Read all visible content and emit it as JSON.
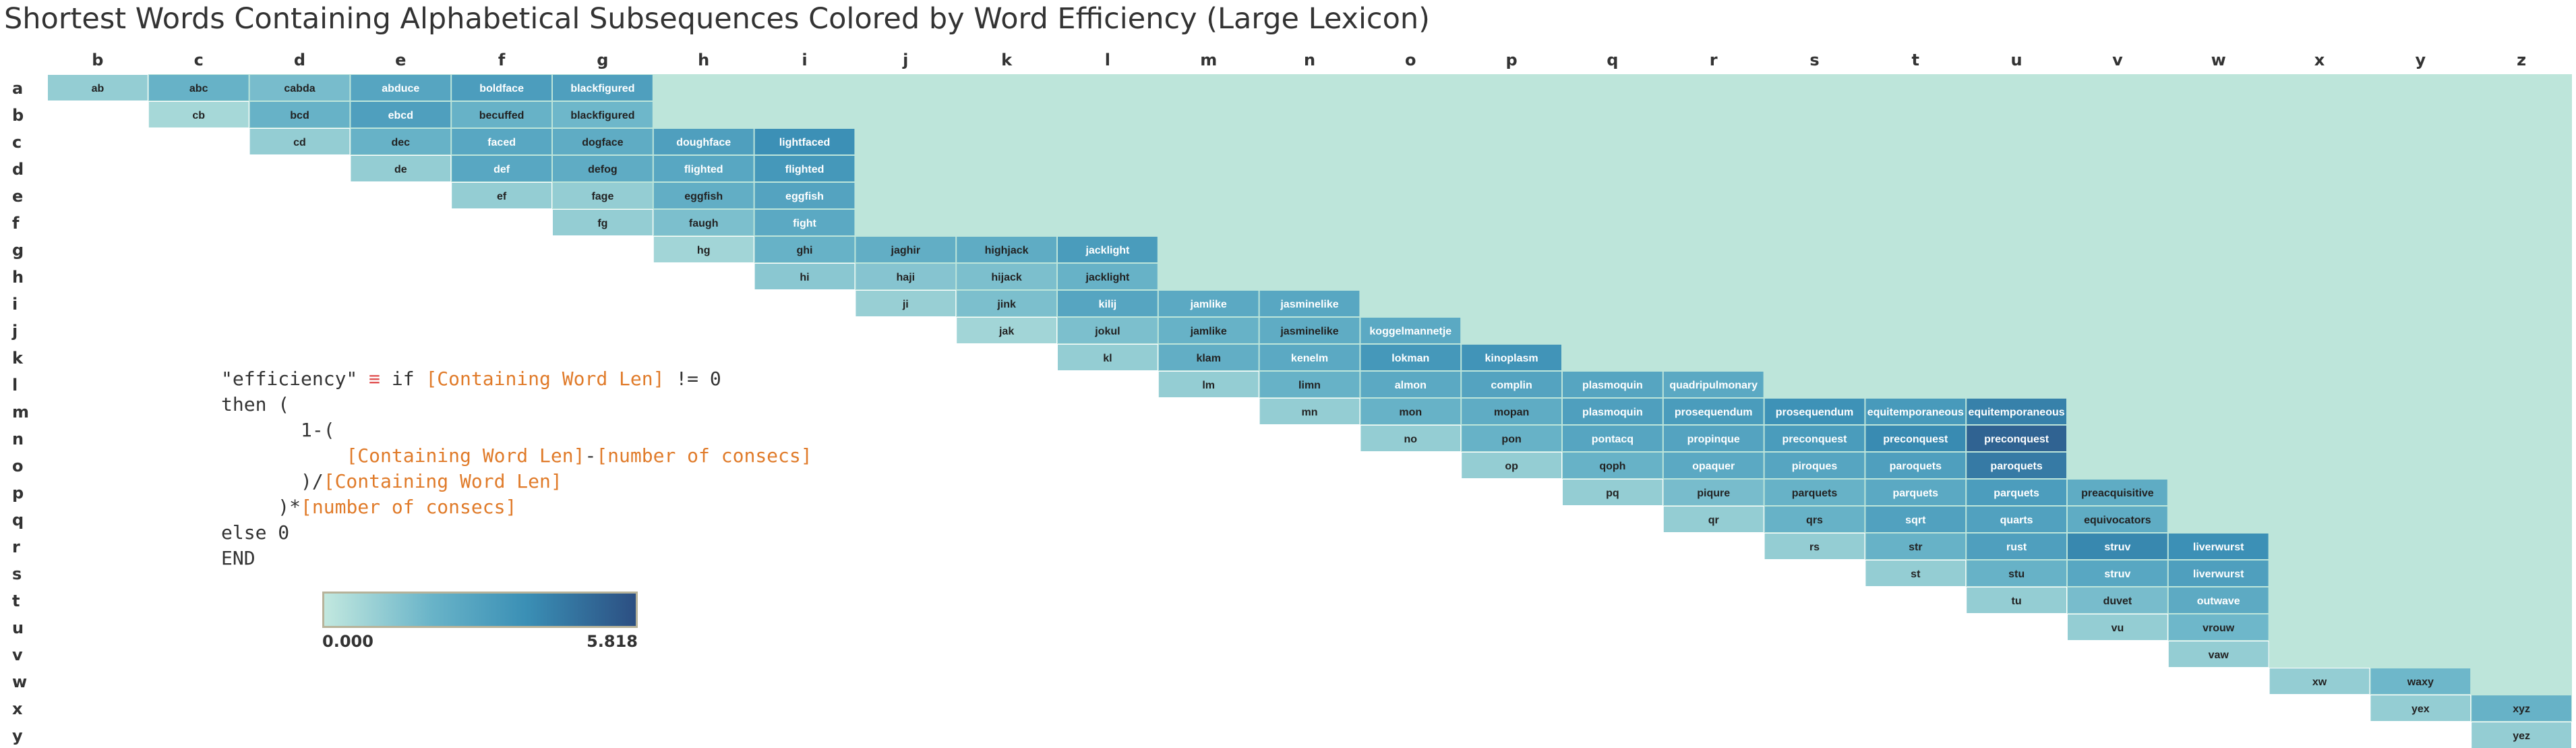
{
  "title": "Shortest Words Containing Alphabetical Subsequences Colored by Word Efficiency (Large Lexicon)",
  "formula_lines": [
    [
      {
        "t": "\"efficiency\" "
      },
      {
        "t": "≡ ",
        "c": "#e05050"
      },
      {
        "t": "if "
      },
      {
        "t": "[Containing Word Len]",
        "c": "#e07b2a"
      },
      {
        "t": " != 0"
      }
    ],
    [
      {
        "t": "then ("
      }
    ],
    [
      {
        "t": "       1-("
      }
    ],
    [
      {
        "t": "           "
      },
      {
        "t": "[Containing Word Len]",
        "c": "#e07b2a"
      },
      {
        "t": "-"
      },
      {
        "t": "[number of consecs]",
        "c": "#e07b2a"
      }
    ],
    [
      {
        "t": "       )/"
      },
      {
        "t": "[Containing Word Len]",
        "c": "#e07b2a"
      }
    ],
    [
      {
        "t": "     )*"
      },
      {
        "t": "[number of consecs]",
        "c": "#e07b2a"
      }
    ],
    [
      {
        "t": "else 0"
      }
    ],
    [
      {
        "t": "END"
      }
    ]
  ],
  "legend": {
    "min_label": "0.000",
    "max_label": "5.818"
  },
  "colors": {
    "background_fill": "#bde5da",
    "scale": [
      "#c2e8df",
      "#68b3c8",
      "#3a8fb5",
      "#2c4f82"
    ]
  },
  "chart_data": {
    "type": "heatmap",
    "x_categories": [
      "b",
      "c",
      "d",
      "e",
      "f",
      "g",
      "h",
      "i",
      "j",
      "k",
      "l",
      "m",
      "n",
      "o",
      "p",
      "q",
      "r",
      "s",
      "t",
      "u",
      "v",
      "w",
      "x",
      "y",
      "z"
    ],
    "y_categories": [
      "a",
      "b",
      "c",
      "d",
      "e",
      "f",
      "g",
      "h",
      "i",
      "j",
      "k",
      "l",
      "m",
      "n",
      "o",
      "p",
      "q",
      "r",
      "s",
      "t",
      "u",
      "v",
      "w",
      "x",
      "y"
    ],
    "color_range": [
      0,
      5.818
    ],
    "cells": [
      {
        "row": "a",
        "col": "b",
        "word": "ab",
        "value": 1.0
      },
      {
        "row": "a",
        "col": "c",
        "word": "abc",
        "value": 2.0
      },
      {
        "row": "a",
        "col": "d",
        "word": "cabda",
        "value": 1.6
      },
      {
        "row": "a",
        "col": "e",
        "word": "abduce",
        "value": 2.7
      },
      {
        "row": "a",
        "col": "f",
        "word": "boldface",
        "value": 3.1
      },
      {
        "row": "a",
        "col": "g",
        "word": "blackfigured",
        "value": 3.0
      },
      {
        "row": "b",
        "col": "c",
        "word": "cb",
        "value": 0.6
      },
      {
        "row": "b",
        "col": "d",
        "word": "bcd",
        "value": 2.0
      },
      {
        "row": "b",
        "col": "e",
        "word": "ebcd",
        "value": 3.0
      },
      {
        "row": "b",
        "col": "f",
        "word": "becuffed",
        "value": 2.0
      },
      {
        "row": "b",
        "col": "g",
        "word": "blackfigured",
        "value": 1.8
      },
      {
        "row": "c",
        "col": "d",
        "word": "cd",
        "value": 1.0
      },
      {
        "row": "c",
        "col": "e",
        "word": "dec",
        "value": 2.0
      },
      {
        "row": "c",
        "col": "f",
        "word": "faced",
        "value": 2.6
      },
      {
        "row": "c",
        "col": "g",
        "word": "dogface",
        "value": 2.3
      },
      {
        "row": "c",
        "col": "h",
        "word": "doughface",
        "value": 3.0
      },
      {
        "row": "c",
        "col": "i",
        "word": "lightfaced",
        "value": 3.8
      },
      {
        "row": "d",
        "col": "e",
        "word": "de",
        "value": 1.0
      },
      {
        "row": "d",
        "col": "f",
        "word": "def",
        "value": 2.6
      },
      {
        "row": "d",
        "col": "g",
        "word": "defog",
        "value": 2.3
      },
      {
        "row": "d",
        "col": "h",
        "word": "flighted",
        "value": 2.6
      },
      {
        "row": "d",
        "col": "i",
        "word": "flighted",
        "value": 3.4
      },
      {
        "row": "e",
        "col": "f",
        "word": "ef",
        "value": 1.0
      },
      {
        "row": "e",
        "col": "g",
        "word": "fage",
        "value": 1.0
      },
      {
        "row": "e",
        "col": "h",
        "word": "eggfish",
        "value": 2.2
      },
      {
        "row": "e",
        "col": "i",
        "word": "eggfish",
        "value": 2.8
      },
      {
        "row": "f",
        "col": "g",
        "word": "fg",
        "value": 1.0
      },
      {
        "row": "f",
        "col": "h",
        "word": "faugh",
        "value": 1.5
      },
      {
        "row": "f",
        "col": "i",
        "word": "fight",
        "value": 2.5
      },
      {
        "row": "g",
        "col": "h",
        "word": "hg",
        "value": 0.7
      },
      {
        "row": "g",
        "col": "i",
        "word": "ghi",
        "value": 2.0
      },
      {
        "row": "g",
        "col": "j",
        "word": "jaghir",
        "value": 2.2
      },
      {
        "row": "g",
        "col": "k",
        "word": "highjack",
        "value": 2.3
      },
      {
        "row": "g",
        "col": "l",
        "word": "jacklight",
        "value": 3.2
      },
      {
        "row": "h",
        "col": "i",
        "word": "hi",
        "value": 1.2
      },
      {
        "row": "h",
        "col": "j",
        "word": "haji",
        "value": 1.3
      },
      {
        "row": "h",
        "col": "k",
        "word": "hijack",
        "value": 1.5
      },
      {
        "row": "h",
        "col": "l",
        "word": "jacklight",
        "value": 2.0
      },
      {
        "row": "i",
        "col": "j",
        "word": "ji",
        "value": 0.9
      },
      {
        "row": "i",
        "col": "k",
        "word": "jink",
        "value": 1.5
      },
      {
        "row": "i",
        "col": "l",
        "word": "kilij",
        "value": 2.7
      },
      {
        "row": "i",
        "col": "m",
        "word": "jamlike",
        "value": 2.5
      },
      {
        "row": "i",
        "col": "n",
        "word": "jasminelike",
        "value": 2.6
      },
      {
        "row": "j",
        "col": "k",
        "word": "jak",
        "value": 0.7
      },
      {
        "row": "j",
        "col": "l",
        "word": "jokul",
        "value": 1.5
      },
      {
        "row": "j",
        "col": "m",
        "word": "jamlike",
        "value": 2.0
      },
      {
        "row": "j",
        "col": "n",
        "word": "jasminelike",
        "value": 2.3
      },
      {
        "row": "j",
        "col": "o",
        "word": "koggelmannetje",
        "value": 2.5
      },
      {
        "row": "k",
        "col": "l",
        "word": "kl",
        "value": 1.0
      },
      {
        "row": "k",
        "col": "m",
        "word": "klam",
        "value": 2.2
      },
      {
        "row": "k",
        "col": "n",
        "word": "kenelm",
        "value": 2.5
      },
      {
        "row": "k",
        "col": "o",
        "word": "lokman",
        "value": 3.4
      },
      {
        "row": "k",
        "col": "p",
        "word": "kinoplasm",
        "value": 3.6
      },
      {
        "row": "l",
        "col": "m",
        "word": "lm",
        "value": 1.0
      },
      {
        "row": "l",
        "col": "n",
        "word": "limn",
        "value": 2.0
      },
      {
        "row": "l",
        "col": "o",
        "word": "almon",
        "value": 2.5
      },
      {
        "row": "l",
        "col": "p",
        "word": "complin",
        "value": 2.8
      },
      {
        "row": "l",
        "col": "q",
        "word": "plasmoquin",
        "value": 2.7
      },
      {
        "row": "l",
        "col": "r",
        "word": "quadripulmonary",
        "value": 2.5
      },
      {
        "row": "m",
        "col": "n",
        "word": "mn",
        "value": 1.0
      },
      {
        "row": "m",
        "col": "o",
        "word": "mon",
        "value": 2.0
      },
      {
        "row": "m",
        "col": "p",
        "word": "mopan",
        "value": 2.3
      },
      {
        "row": "m",
        "col": "q",
        "word": "plasmoquin",
        "value": 3.0
      },
      {
        "row": "m",
        "col": "r",
        "word": "prosequendum",
        "value": 3.2
      },
      {
        "row": "m",
        "col": "s",
        "word": "prosequendum",
        "value": 3.7
      },
      {
        "row": "m",
        "col": "t",
        "word": "equitemporaneous",
        "value": 3.3
      },
      {
        "row": "m",
        "col": "u",
        "word": "equitemporaneous",
        "value": 4.3
      },
      {
        "row": "n",
        "col": "o",
        "word": "no",
        "value": 1.0
      },
      {
        "row": "n",
        "col": "p",
        "word": "pon",
        "value": 2.0
      },
      {
        "row": "n",
        "col": "q",
        "word": "pontacq",
        "value": 2.7
      },
      {
        "row": "n",
        "col": "r",
        "word": "propinque",
        "value": 2.8
      },
      {
        "row": "n",
        "col": "s",
        "word": "preconquest",
        "value": 3.2
      },
      {
        "row": "n",
        "col": "t",
        "word": "preconquest",
        "value": 4.0
      },
      {
        "row": "n",
        "col": "u",
        "word": "preconquest",
        "value": 5.2
      },
      {
        "row": "o",
        "col": "p",
        "word": "op",
        "value": 1.0
      },
      {
        "row": "o",
        "col": "q",
        "word": "qoph",
        "value": 2.0
      },
      {
        "row": "o",
        "col": "r",
        "word": "opaquer",
        "value": 2.5
      },
      {
        "row": "o",
        "col": "s",
        "word": "piroques",
        "value": 2.7
      },
      {
        "row": "o",
        "col": "t",
        "word": "paroquets",
        "value": 3.0
      },
      {
        "row": "o",
        "col": "u",
        "word": "paroquets",
        "value": 4.5
      },
      {
        "row": "p",
        "col": "q",
        "word": "pq",
        "value": 1.0
      },
      {
        "row": "p",
        "col": "r",
        "word": "piqure",
        "value": 1.6
      },
      {
        "row": "p",
        "col": "s",
        "word": "parquets",
        "value": 2.0
      },
      {
        "row": "p",
        "col": "t",
        "word": "parquets",
        "value": 2.5
      },
      {
        "row": "p",
        "col": "u",
        "word": "parquets",
        "value": 3.1
      },
      {
        "row": "p",
        "col": "v",
        "word": "preacquisitive",
        "value": 2.3
      },
      {
        "row": "q",
        "col": "r",
        "word": "qr",
        "value": 1.0
      },
      {
        "row": "q",
        "col": "s",
        "word": "qrs",
        "value": 2.0
      },
      {
        "row": "q",
        "col": "t",
        "word": "sqrt",
        "value": 2.9
      },
      {
        "row": "q",
        "col": "u",
        "word": "quarts",
        "value": 2.9
      },
      {
        "row": "q",
        "col": "v",
        "word": "equivocators",
        "value": 2.3
      },
      {
        "row": "r",
        "col": "s",
        "word": "rs",
        "value": 1.0
      },
      {
        "row": "r",
        "col": "t",
        "word": "str",
        "value": 2.0
      },
      {
        "row": "r",
        "col": "u",
        "word": "rust",
        "value": 3.0
      },
      {
        "row": "r",
        "col": "v",
        "word": "struv",
        "value": 4.1
      },
      {
        "row": "r",
        "col": "w",
        "word": "liverwurst",
        "value": 3.8
      },
      {
        "row": "s",
        "col": "t",
        "word": "st",
        "value": 1.0
      },
      {
        "row": "s",
        "col": "u",
        "word": "stu",
        "value": 2.0
      },
      {
        "row": "s",
        "col": "v",
        "word": "struv",
        "value": 2.6
      },
      {
        "row": "s",
        "col": "w",
        "word": "liverwurst",
        "value": 3.0
      },
      {
        "row": "t",
        "col": "u",
        "word": "tu",
        "value": 1.0
      },
      {
        "row": "t",
        "col": "v",
        "word": "duvet",
        "value": 1.6
      },
      {
        "row": "t",
        "col": "w",
        "word": "outwave",
        "value": 2.4
      },
      {
        "row": "u",
        "col": "v",
        "word": "vu",
        "value": 1.0
      },
      {
        "row": "u",
        "col": "w",
        "word": "vrouw",
        "value": 1.8
      },
      {
        "row": "v",
        "col": "w",
        "word": "vaw",
        "value": 1.0
      },
      {
        "row": "w",
        "col": "x",
        "word": "xw",
        "value": 1.0
      },
      {
        "row": "w",
        "col": "y",
        "word": "waxy",
        "value": 1.8
      },
      {
        "row": "x",
        "col": "y",
        "word": "yex",
        "value": 1.0
      },
      {
        "row": "x",
        "col": "z",
        "word": "xyz",
        "value": 2.0
      },
      {
        "row": "y",
        "col": "z",
        "word": "yez",
        "value": 1.0
      }
    ]
  }
}
